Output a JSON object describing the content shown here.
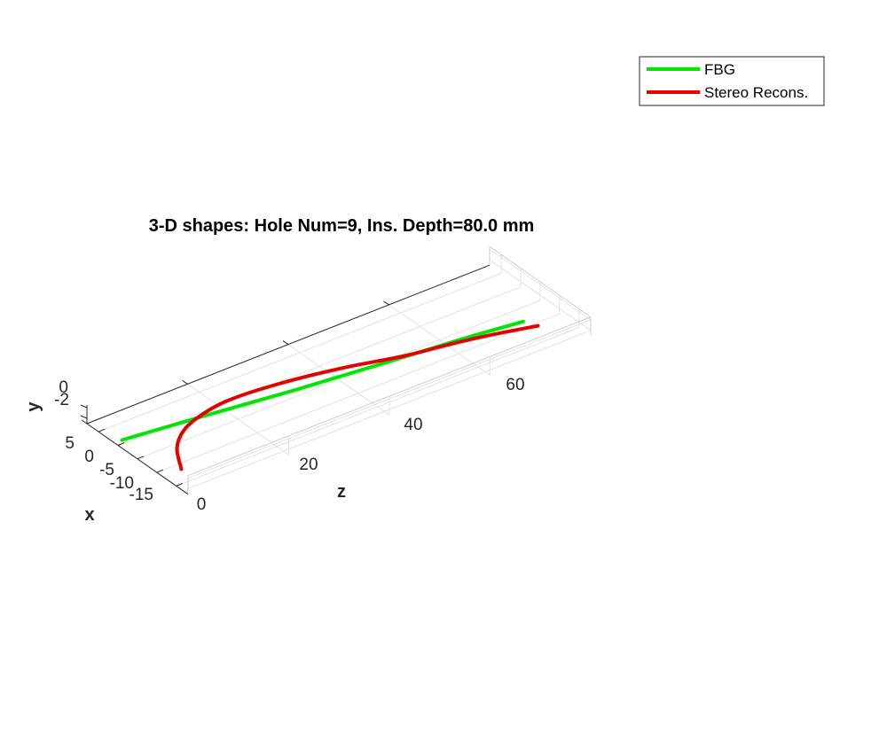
{
  "chart_data": {
    "type": "line",
    "projection": "3d",
    "title": "3-D shapes: Hole Num=9, Ins. Depth=80.0 mm",
    "xlabel": "x",
    "ylabel": "y",
    "zlabel": "z",
    "xlim": [
      -18,
      8
    ],
    "ylim": [
      -3,
      0.5
    ],
    "zlim": [
      0,
      80
    ],
    "x_ticks": [
      "5",
      "0",
      "-5",
      "-10",
      "-15"
    ],
    "y_ticks": [
      "0",
      "-2"
    ],
    "z_ticks": [
      "0",
      "20",
      "40",
      "60"
    ],
    "grid": true,
    "legend_position": "top-right",
    "series": [
      {
        "name": "FBG",
        "color": "#00e600",
        "x": [
          -1.0,
          -3.8,
          -6.5,
          -8.7,
          -10.6,
          -12.3
        ],
        "y": [
          -1.5,
          -0.9,
          -0.5,
          -0.2,
          0.0,
          0.1
        ],
        "z": [
          0,
          15,
          30,
          45,
          60,
          71
        ]
      },
      {
        "name": "Stereo Recons.",
        "color": "#e60000",
        "x": [
          -15.0,
          -10.0,
          -6.5,
          -4.3,
          -3.0,
          -3.8,
          -6.0,
          -9.0,
          -10.8,
          -12.6,
          -14.8
        ],
        "y": [
          -0.2,
          0.1,
          0.1,
          -0.1,
          -0.3,
          -0.4,
          -0.3,
          -0.2,
          0.0,
          0.1,
          0.2
        ],
        "z": [
          1,
          4,
          8,
          13,
          20,
          30,
          40,
          50,
          58,
          65,
          72
        ]
      }
    ]
  }
}
